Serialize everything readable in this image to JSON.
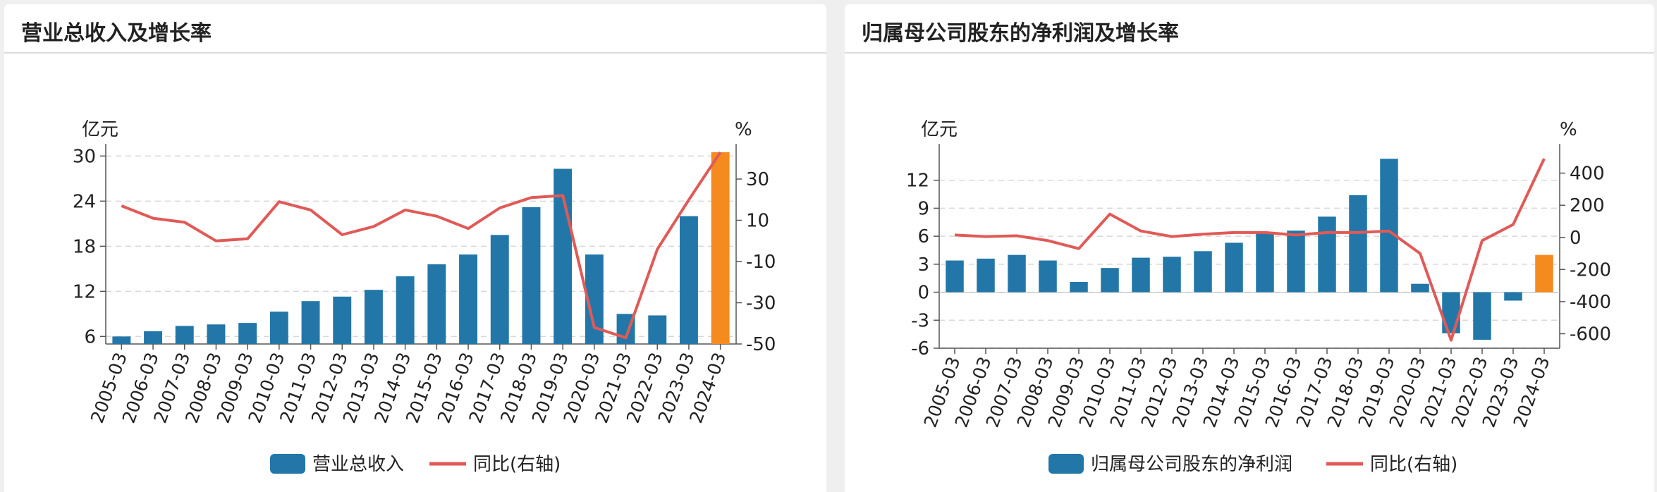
{
  "panels": {
    "left": {
      "title": "营业总收入及增长率"
    },
    "right": {
      "title": "归属母公司股东的净利润及增长率"
    }
  },
  "chart_data": [
    {
      "type": "bar",
      "title": "营业总收入及增长率",
      "categories": [
        "2005-03",
        "2006-03",
        "2007-03",
        "2008-03",
        "2009-03",
        "2010-03",
        "2011-03",
        "2012-03",
        "2013-03",
        "2014-03",
        "2015-03",
        "2016-03",
        "2017-03",
        "2018-03",
        "2019-03",
        "2020-03",
        "2021-03",
        "2022-03",
        "2023-03",
        "2024-03"
      ],
      "y_left_unit": "亿元",
      "y_right_unit": "%",
      "ylim_left": [
        5,
        30.5
      ],
      "ylim_right": [
        -50,
        43
      ],
      "y_left_ticks": [
        6,
        12,
        18,
        24,
        30
      ],
      "y_right_ticks": [
        30,
        10,
        -10,
        -30,
        -50
      ],
      "highlight_color": "#f58a1f",
      "bar_color": "#2277a8",
      "line_color": "#e05a57",
      "grid": true,
      "legend_position": "bottom",
      "series": [
        {
          "name": "营业总收入",
          "axis": "left",
          "kind": "bar",
          "values": [
            6.0,
            6.7,
            7.4,
            7.6,
            7.8,
            9.3,
            10.7,
            11.3,
            12.2,
            14.0,
            15.6,
            16.9,
            19.5,
            23.2,
            28.3,
            16.9,
            9.0,
            8.8,
            22.0,
            31.0
          ]
        },
        {
          "name": "同比(右轴)",
          "axis": "right",
          "kind": "line",
          "values": [
            17,
            11,
            9,
            0,
            1,
            19,
            15,
            3,
            7,
            15,
            12,
            6,
            16,
            21,
            22,
            -42,
            -47,
            -4,
            20,
            43
          ]
        }
      ],
      "legend": [
        {
          "label": "营业总收入",
          "kind": "bar"
        },
        {
          "label": "同比(右轴)",
          "kind": "line"
        }
      ]
    },
    {
      "type": "bar",
      "title": "归属母公司股东的净利润及增长率",
      "categories": [
        "2005-03",
        "2006-03",
        "2007-03",
        "2008-03",
        "2009-03",
        "2010-03",
        "2011-03",
        "2012-03",
        "2013-03",
        "2014-03",
        "2015-03",
        "2016-03",
        "2017-03",
        "2018-03",
        "2019-03",
        "2020-03",
        "2021-03",
        "2022-03",
        "2023-03",
        "2024-03"
      ],
      "y_left_unit": "亿元",
      "y_right_unit": "%",
      "ylim_left": [
        -6,
        15
      ],
      "ylim_right": [
        -690,
        530
      ],
      "y_left_ticks": [
        12,
        9,
        6,
        3,
        0,
        -3,
        -6
      ],
      "y_right_ticks": [
        400,
        200,
        0,
        -200,
        -400,
        -600
      ],
      "highlight_color": "#f58a1f",
      "bar_color": "#2277a8",
      "line_color": "#e05a57",
      "grid": true,
      "legend_position": "bottom",
      "series": [
        {
          "name": "归属母公司股东的净利润",
          "axis": "left",
          "kind": "bar",
          "values": [
            3.4,
            3.6,
            4.0,
            3.4,
            1.1,
            2.6,
            3.7,
            3.8,
            4.4,
            5.3,
            6.4,
            6.6,
            8.1,
            10.4,
            14.3,
            0.9,
            -4.4,
            -5.1,
            -0.9,
            4.0
          ]
        },
        {
          "name": "同比(右轴)",
          "axis": "right",
          "kind": "line",
          "values": [
            15,
            5,
            10,
            -20,
            -70,
            145,
            40,
            5,
            20,
            30,
            30,
            15,
            30,
            30,
            40,
            -100,
            -640,
            -20,
            80,
            490
          ]
        }
      ],
      "legend": [
        {
          "label": "归属母公司股东的净利润",
          "kind": "bar"
        },
        {
          "label": "同比(右轴)",
          "kind": "line"
        }
      ]
    }
  ]
}
